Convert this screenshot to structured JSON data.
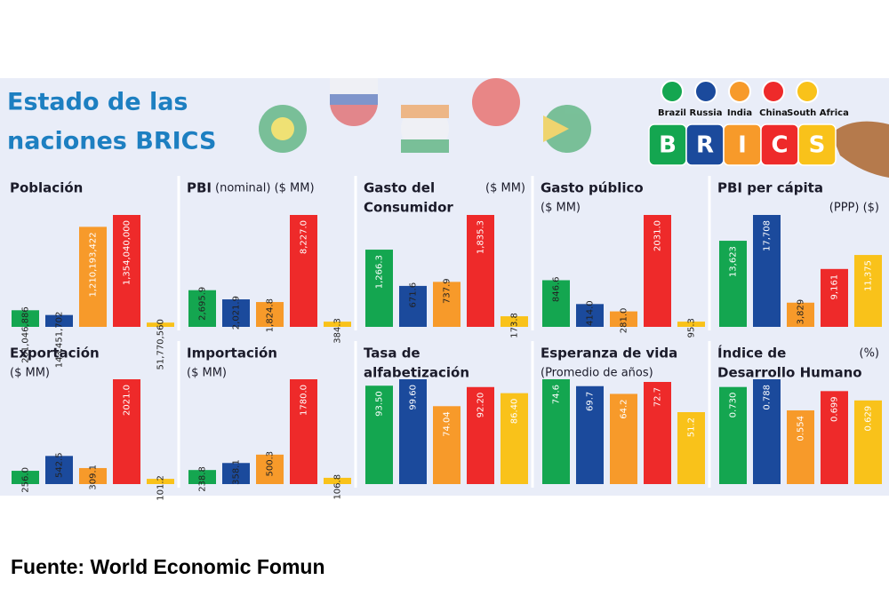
{
  "title_lines": [
    "Estado de las",
    "naciones BRICS"
  ],
  "source": "Fuente: World Economic Fomun",
  "countries": [
    {
      "name": "Brazil",
      "color": "#14a650"
    },
    {
      "name": "Russia",
      "color": "#1b4a9c"
    },
    {
      "name": "India",
      "color": "#f79a2a"
    },
    {
      "name": "China",
      "color": "#ee2a2a"
    },
    {
      "name": "South Africa",
      "color": "#f9c21a"
    }
  ],
  "logo_letters": [
    "B",
    "R",
    "I",
    "C",
    "S"
  ],
  "chart_data": [
    {
      "type": "bar",
      "title_lines": [
        "Población"
      ],
      "values": [
        201046886,
        143451702,
        1210193422,
        1354040000,
        51770560
      ],
      "value_labels": [
        "201,046,886",
        "143,451,702",
        "1,210,193,422",
        "1,354,040,000",
        "51,770,560"
      ]
    },
    {
      "type": "bar",
      "title_lines": [
        "PBI"
      ],
      "unit": "(nominal) ($ MM)",
      "values": [
        2695.9,
        2021.9,
        1824.8,
        8227.0,
        384.3
      ],
      "value_labels": [
        "2,695.9",
        "2,021.9",
        "1,824.8",
        "8,227.0",
        "384.3"
      ]
    },
    {
      "type": "bar",
      "title_lines": [
        "Gasto del",
        "Consumidor"
      ],
      "unit": "($ MM)",
      "values": [
        1266.3,
        671.6,
        737.9,
        1835.3,
        173.8
      ],
      "value_labels": [
        "1,266.3",
        "671.6",
        "737.9",
        "1,835.3",
        "173.8"
      ]
    },
    {
      "type": "bar",
      "title_lines": [
        "Gasto público"
      ],
      "unit": "($ MM)",
      "values": [
        846.6,
        414.0,
        281.0,
        2031.0,
        95.3
      ],
      "value_labels": [
        "846.6",
        "414.0",
        "281.0",
        "2031.0",
        "95.3"
      ]
    },
    {
      "type": "bar",
      "title_lines": [
        "PBI per cápita"
      ],
      "unit": "(PPP) ($)",
      "values": [
        13623,
        17708,
        3829,
        9161,
        11375
      ],
      "value_labels": [
        "13,623",
        "17,708",
        "3,829",
        "9,161",
        "11,375"
      ]
    },
    {
      "type": "bar",
      "title_lines": [
        "Exportación"
      ],
      "unit": "($ MM)",
      "values": [
        256.0,
        542.5,
        309.1,
        2021.0,
        101.2
      ],
      "value_labels": [
        "256.0",
        "542.5",
        "309.1",
        "2021.0",
        "101.2"
      ]
    },
    {
      "type": "bar",
      "title_lines": [
        "Importación"
      ],
      "unit": "($ MM)",
      "values": [
        238.8,
        358.1,
        500.3,
        1780.0,
        106.8
      ],
      "value_labels": [
        "238.8",
        "358.1",
        "500.3",
        "1780.0",
        "106.8"
      ]
    },
    {
      "type": "bar",
      "title_lines": [
        "Tasa de",
        "alfabetización"
      ],
      "values": [
        93.5,
        99.6,
        74.04,
        92.2,
        86.4
      ],
      "value_labels": [
        "93.50",
        "99.60",
        "74.04",
        "92.20",
        "86.40"
      ]
    },
    {
      "type": "bar",
      "title_lines": [
        "Esperanza de vida"
      ],
      "unit": "(Promedio de años)",
      "values": [
        74.6,
        69.7,
        64.2,
        72.7,
        51.2
      ],
      "value_labels": [
        "74.6",
        "69.7",
        "64.2",
        "72.7",
        "51.2"
      ]
    },
    {
      "type": "bar",
      "title_lines": [
        "Índice de",
        "Desarrollo Humano"
      ],
      "unit": "(%)",
      "values": [
        0.73,
        0.788,
        0.554,
        0.699,
        0.629
      ],
      "value_labels": [
        "0.730",
        "0.788",
        "0.554",
        "0.699",
        "0.629"
      ]
    }
  ]
}
